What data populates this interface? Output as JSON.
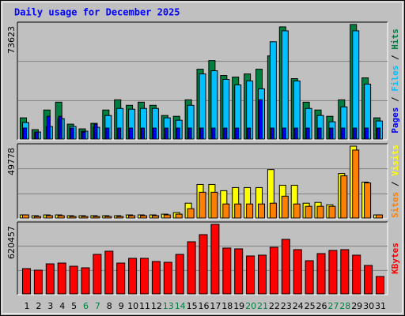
{
  "chart_data": [
    {
      "type": "bar",
      "title": "Daily usage for December 2025",
      "ylim": [
        0,
        73623
      ],
      "yticks": [
        73623
      ],
      "series": [
        {
          "name": "Hits",
          "color": "#008040",
          "values": [
            13616,
            6052,
            18659,
            23702,
            9582,
            6556,
            10086,
            18659,
            25215,
            21685,
            23702,
            21685,
            15129,
            14625,
            25215,
            44883,
            50430,
            40848,
            39840,
            41857,
            44883,
            53456,
            72100,
            38831,
            23702,
            18659,
            14625,
            25215,
            73623,
            39335,
            13616
          ]
        },
        {
          "name": "Files",
          "color": "#00c0ff",
          "values": [
            10590,
            4539,
            8069,
            13112,
            8069,
            5043,
            7565,
            15129,
            19668,
            19164,
            19668,
            19668,
            13616,
            12103,
            21685,
            41858,
            43875,
            38332,
            34797,
            37318,
            32275,
            62533,
            69593,
            37318,
            19668,
            15129,
            11095,
            20677,
            69593,
            35301,
            11599
          ]
        },
        {
          "name": "Pages",
          "color": "#0000ff",
          "values": [
            7060,
            4539,
            14625,
            14625,
            7060,
            4539,
            9582,
            7060,
            7060,
            7060,
            7060,
            7060,
            7060,
            7060,
            7060,
            7060,
            7060,
            7060,
            7060,
            7060,
            25215,
            7060,
            7060,
            7060,
            7060,
            7060,
            7060,
            7060,
            7060,
            7060,
            7060
          ]
        }
      ]
    },
    {
      "type": "bar",
      "ylim": [
        0,
        49778
      ],
      "yticks": [
        49778
      ],
      "series": [
        {
          "name": "Visits",
          "color": "#ffff00",
          "values": [
            2164,
            1623,
            2164,
            2164,
            1623,
            1623,
            1623,
            1623,
            1623,
            2164,
            2164,
            2164,
            2705,
            3787,
            10279,
            23263,
            23263,
            18935,
            21099,
            21099,
            21099,
            33542,
            22722,
            22722,
            10279,
            10820,
            9197,
            30837,
            49778,
            24886,
            2164
          ]
        },
        {
          "name": "Sites",
          "color": "#ff8000",
          "values": [
            2164,
            1082,
            1623,
            1623,
            1082,
            1082,
            1082,
            1082,
            1082,
            1623,
            1623,
            1623,
            2164,
            2705,
            6492,
            17853,
            17853,
            9738,
            9738,
            9738,
            9738,
            10279,
            15148,
            9738,
            8115,
            8115,
            8115,
            29214,
            47073,
            24345,
            2164
          ]
        }
      ]
    },
    {
      "type": "bar",
      "ylim": [
        0,
        620457
      ],
      "yticks": [
        620457
      ],
      "categories": [
        "1",
        "2",
        "3",
        "4",
        "5",
        "6",
        "7",
        "8",
        "9",
        "10",
        "11",
        "12",
        "13",
        "14",
        "15",
        "16",
        "17",
        "18",
        "19",
        "20",
        "21",
        "22",
        "23",
        "24",
        "25",
        "26",
        "27",
        "28",
        "29",
        "30",
        "31"
      ],
      "category_colors": [
        "#000000",
        "#000000",
        "#000000",
        "#000000",
        "#000000",
        "#008040",
        "#008040",
        "#000000",
        "#000000",
        "#000000",
        "#000000",
        "#000000",
        "#008040",
        "#008040",
        "#000000",
        "#000000",
        "#000000",
        "#000000",
        "#000000",
        "#008040",
        "#008040",
        "#000000",
        "#000000",
        "#000000",
        "#000000",
        "#000000",
        "#008040",
        "#008040",
        "#000000",
        "#000000",
        "#000000"
      ],
      "series": [
        {
          "name": "KBytes",
          "color": "#ff0000",
          "values": [
            225632,
            211530,
            267938,
            274989,
            246785,
            232683,
            352550,
            380754,
            274989,
            317295,
            317295,
            289091,
            282040,
            352550,
            465366,
            528825,
            620457,
            408958,
            401907,
            338448,
            345499,
            416009,
            486519,
            394856,
            296142,
            359601,
            387805,
            394856,
            345499,
            253836,
            155122
          ]
        }
      ]
    }
  ]
}
